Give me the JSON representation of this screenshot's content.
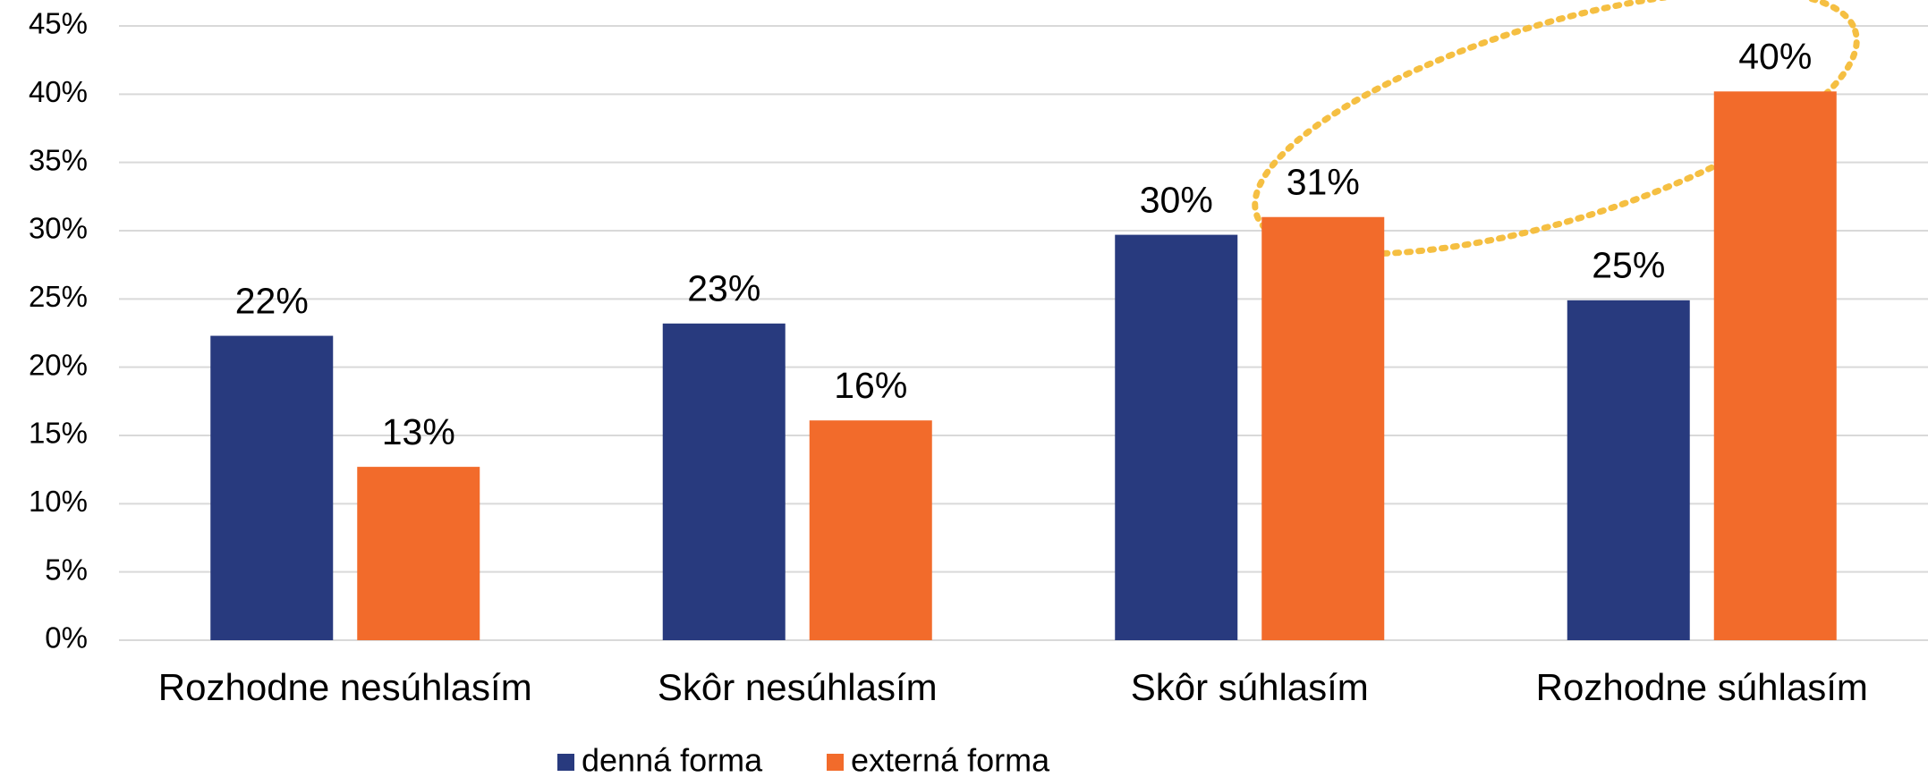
{
  "chart_data": {
    "type": "bar",
    "categories": [
      "Rozhodne nesúhlasím",
      "Skôr nesúhlasím",
      "Skôr súhlasím",
      "Rozhodne súhlasím"
    ],
    "series": [
      {
        "name": "denná forma",
        "color": "#283a7e",
        "values": [
          22.3,
          23.2,
          29.7,
          24.9
        ],
        "value_labels": [
          "22%",
          "23%",
          "30%",
          "25%"
        ]
      },
      {
        "name": "externá forma",
        "color": "#f26b2b",
        "values": [
          12.7,
          16.1,
          31.0,
          40.2
        ],
        "value_labels": [
          "13%",
          "16%",
          "31%",
          "40%"
        ]
      }
    ],
    "ylim": [
      0,
      45
    ],
    "yticks": [
      {
        "value": 0,
        "label": "0%"
      },
      {
        "value": 5,
        "label": "5%"
      },
      {
        "value": 10,
        "label": "10%"
      },
      {
        "value": 15,
        "label": "15%"
      },
      {
        "value": 20,
        "label": "20%"
      },
      {
        "value": 25,
        "label": "25%"
      },
      {
        "value": 30,
        "label": "30%"
      },
      {
        "value": 35,
        "label": "35%"
      },
      {
        "value": 40,
        "label": "40%"
      },
      {
        "value": 45,
        "label": "45%"
      }
    ],
    "grid": true,
    "legend": "bottom"
  }
}
